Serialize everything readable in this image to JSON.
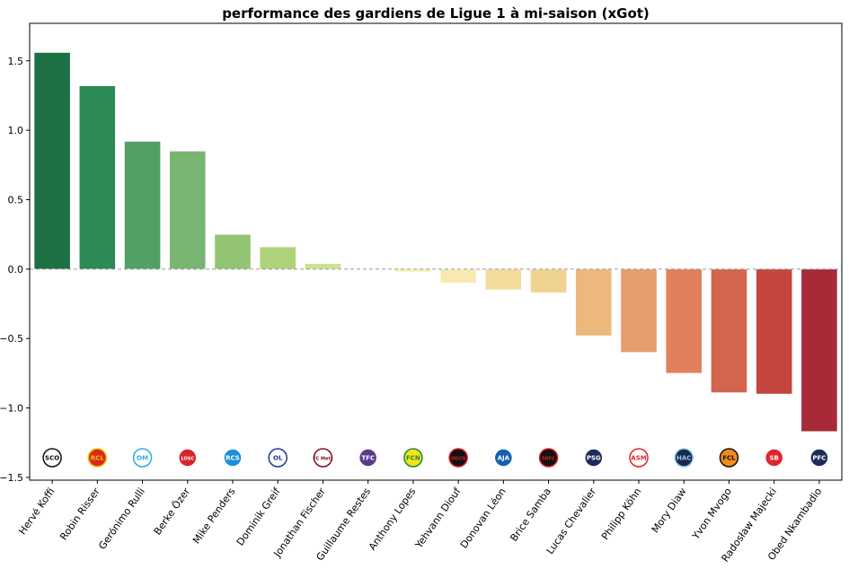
{
  "chart_data": {
    "type": "bar",
    "title": "performance des gardiens de Ligue 1 à mi-saison (xGot)",
    "xlabel": "",
    "ylabel": "",
    "ylim": [
      -1.52,
      1.77
    ],
    "yticks": [
      -1.5,
      -1.0,
      -0.5,
      0.0,
      0.5,
      1.0,
      1.5
    ],
    "ytick_labels": [
      "−1.5",
      "−1.0",
      "−0.5",
      "0.0",
      "0.5",
      "1.0",
      "1.5"
    ],
    "reference_line": 0.0,
    "grid": false,
    "categories": [
      "Hervé Koffi",
      "Robin Risser",
      "Gerónimo Rulli",
      "Berke Özer",
      "Mike Penders",
      "Dominik Greif",
      "Jonathan Fischer",
      "Guillaume Restes",
      "Anthony Lopes",
      "Yehvann Diouf",
      "Donovan Léon",
      "Brice Samba",
      "Lucas Chevalier",
      "Philipp Köhn",
      "Mory Diaw",
      "Yvon Mvogo",
      "Radosław Majecki",
      "Obed Nkambadio"
    ],
    "values": [
      1.56,
      1.32,
      0.92,
      0.85,
      0.25,
      0.16,
      0.04,
      0.0,
      -0.02,
      -0.1,
      -0.15,
      -0.17,
      -0.48,
      -0.6,
      -0.75,
      -0.89,
      -0.9,
      -1.17
    ],
    "colors": [
      "#1d6f44",
      "#2b8a56",
      "#51a164",
      "#77b571",
      "#93c473",
      "#add37b",
      "#cbe195",
      "#e6eea8",
      "#f4f0b0",
      "#f7eab0",
      "#f3dc9c",
      "#f0d391",
      "#ecb87b",
      "#e59d6c",
      "#e07f5a",
      "#d3644e",
      "#c3473f",
      "#a82a38"
    ],
    "club_logos": [
      {
        "club": "Angers",
        "text": "SCO",
        "fg": "#111111",
        "bg": "#ffffff"
      },
      {
        "club": "Lens",
        "text": "RCL",
        "fg": "#f4c300",
        "bg": "#d52b1e"
      },
      {
        "club": "Marseille",
        "text": "OM",
        "fg": "#2faee0",
        "bg": "#ffffff"
      },
      {
        "club": "Lille",
        "text": "LOSC",
        "fg": "#ffffff",
        "bg": "#d7242f"
      },
      {
        "club": "Strasbourg",
        "text": "RCS",
        "fg": "#ffffff",
        "bg": "#1e8fd6"
      },
      {
        "club": "Lyon",
        "text": "OL",
        "fg": "#1a3a8f",
        "bg": "#ffffff"
      },
      {
        "club": "Metz",
        "text": "FC Metz",
        "fg": "#7a1020",
        "bg": "#ffffff"
      },
      {
        "club": "Toulouse",
        "text": "TFC",
        "fg": "#ffffff",
        "bg": "#5b3a8c"
      },
      {
        "club": "Nantes",
        "text": "FCN",
        "fg": "#1b8a3c",
        "bg": "#f7e21c"
      },
      {
        "club": "Nice",
        "text": "OGCN",
        "fg": "#d81e27",
        "bg": "#111111"
      },
      {
        "club": "Auxerre",
        "text": "AJA",
        "fg": "#ffffff",
        "bg": "#1560b0"
      },
      {
        "club": "Rennes",
        "text": "SRFC",
        "fg": "#d81e27",
        "bg": "#111111"
      },
      {
        "club": "PSG",
        "text": "PSG",
        "fg": "#ffffff",
        "bg": "#1c2b5a"
      },
      {
        "club": "Monaco",
        "text": "ASM",
        "fg": "#e0242e",
        "bg": "#ffffff"
      },
      {
        "club": "Le Havre",
        "text": "HAC",
        "fg": "#8ecdf0",
        "bg": "#1b2a4a"
      },
      {
        "club": "Lorient",
        "text": "FCL",
        "fg": "#111111",
        "bg": "#f28c1c"
      },
      {
        "club": "Brest",
        "text": "SB",
        "fg": "#ffffff",
        "bg": "#e1242c"
      },
      {
        "club": "Paris FC",
        "text": "PFC",
        "fg": "#ffffff",
        "bg": "#1c2b5a"
      }
    ]
  }
}
